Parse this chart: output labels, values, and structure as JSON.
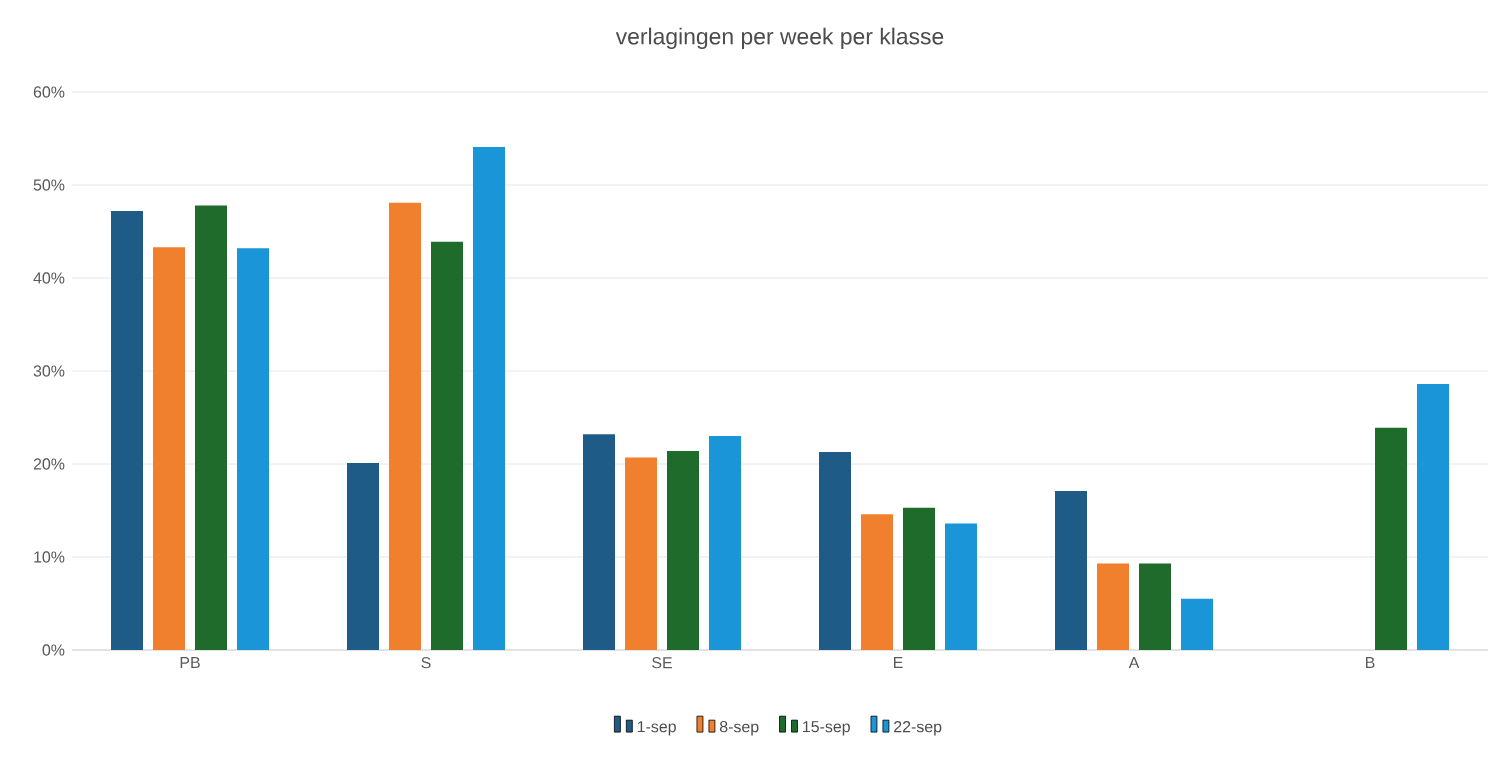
{
  "chart_data": {
    "type": "bar",
    "title": "verlagingen per week per klasse",
    "categories": [
      "PB",
      "S",
      "SE",
      "E",
      "A",
      "B"
    ],
    "series": [
      {
        "name": "1-sep",
        "color": "#1f5b87",
        "values": [
          47.2,
          20.1,
          23.2,
          21.3,
          17.1,
          null
        ]
      },
      {
        "name": "8-sep",
        "color": "#f07f2e",
        "values": [
          43.3,
          48.1,
          20.7,
          14.6,
          9.3,
          null
        ]
      },
      {
        "name": "15-sep",
        "color": "#1e6b2c",
        "values": [
          47.8,
          43.9,
          21.4,
          15.3,
          9.3,
          23.9
        ]
      },
      {
        "name": "22-sep",
        "color": "#1a95d8",
        "values": [
          43.2,
          54.1,
          23.0,
          13.6,
          5.5,
          28.6
        ]
      }
    ],
    "ylim": [
      0,
      60
    ],
    "yticks": [
      {
        "value": 0,
        "label": "0%"
      },
      {
        "value": 10,
        "label": "10%"
      },
      {
        "value": 20,
        "label": "20%"
      },
      {
        "value": 30,
        "label": "30%"
      },
      {
        "value": 40,
        "label": "40%"
      },
      {
        "value": 50,
        "label": "50%"
      },
      {
        "value": 60,
        "label": "60%"
      }
    ],
    "grid": "y",
    "legend": "bottom"
  }
}
